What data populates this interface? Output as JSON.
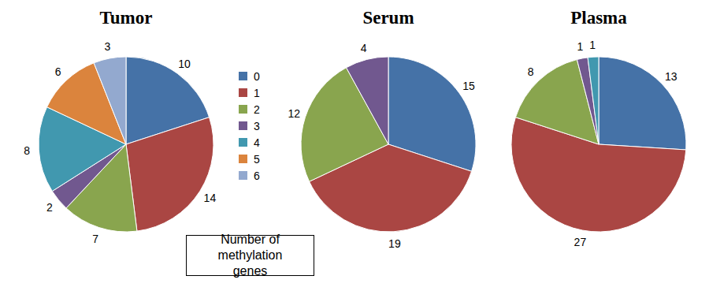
{
  "chart_data": [
    {
      "type": "pie",
      "title": "Tumor",
      "categories": [
        "0",
        "1",
        "2",
        "3",
        "4",
        "5",
        "6"
      ],
      "values": [
        10,
        14,
        7,
        2,
        8,
        6,
        3
      ],
      "colors": [
        "#4572a7",
        "#aa4643",
        "#89a54e",
        "#71588f",
        "#4198af",
        "#db843d",
        "#93a9cf"
      ],
      "data_labels": true,
      "legend": "right",
      "legend_title": "Number of methylation genes"
    },
    {
      "type": "pie",
      "title": "Serum",
      "categories": [
        "0",
        "1",
        "2",
        "3"
      ],
      "values": [
        15,
        19,
        12,
        4
      ],
      "colors": [
        "#4572a7",
        "#aa4643",
        "#89a54e",
        "#71588f"
      ],
      "data_labels": true
    },
    {
      "type": "pie",
      "title": "Plasma",
      "categories": [
        "0",
        "1",
        "2",
        "3",
        "4"
      ],
      "values": [
        13,
        27,
        8,
        1,
        1
      ],
      "colors": [
        "#4572a7",
        "#aa4643",
        "#89a54e",
        "#71588f",
        "#4198af"
      ],
      "data_labels": true
    }
  ]
}
